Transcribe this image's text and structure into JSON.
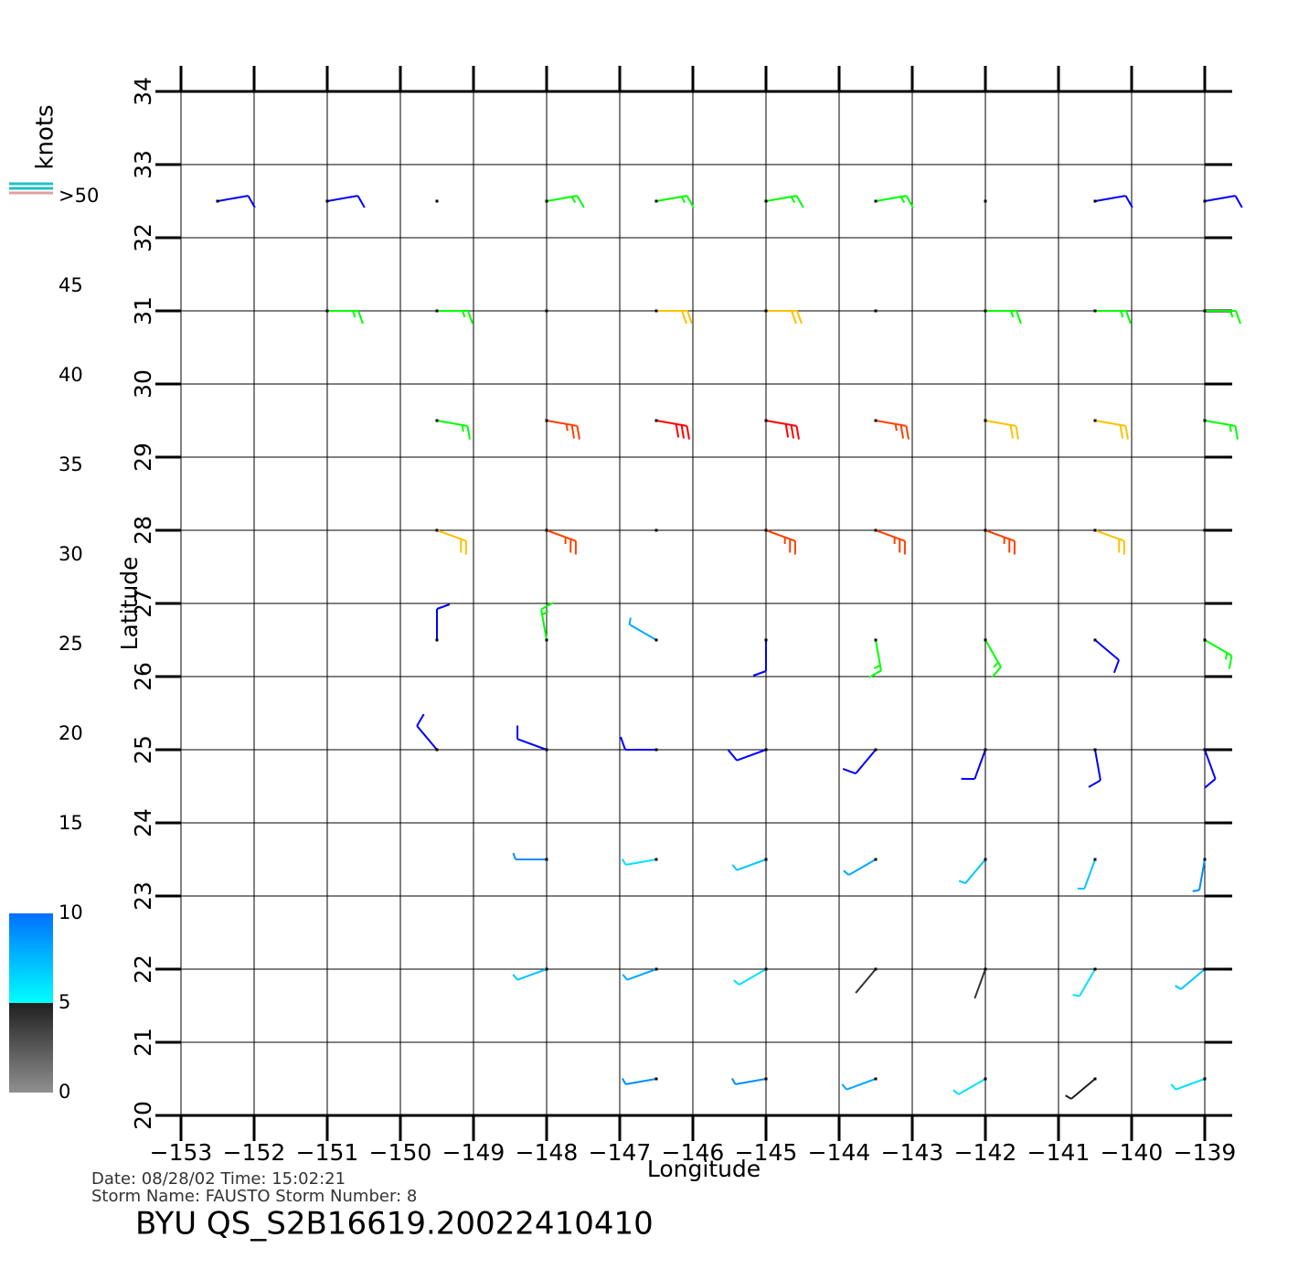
{
  "chart_data": {
    "type": "barb",
    "title": "BYU  QS_S2B16619.20022410410",
    "info_lines": [
      "Date: 08/28/02   Time: 15:02:21",
      "Storm Name: FAUSTO   Storm Number: 8"
    ],
    "xlabel": "Longitude",
    "ylabel": "Latitude",
    "xlim": [
      -153,
      -138.625
    ],
    "ylim": [
      20,
      34
    ],
    "xticks": [
      {
        "value": -153,
        "label": "−153"
      },
      {
        "value": -152,
        "label": "−152"
      },
      {
        "value": -151,
        "label": "−151"
      },
      {
        "value": -150,
        "label": "−150"
      },
      {
        "value": -149,
        "label": "−149"
      },
      {
        "value": -148,
        "label": "−148"
      },
      {
        "value": -147,
        "label": "−147"
      },
      {
        "value": -146,
        "label": "−146"
      },
      {
        "value": -145,
        "label": "−145"
      },
      {
        "value": -144,
        "label": "−144"
      },
      {
        "value": -143,
        "label": "−143"
      },
      {
        "value": -142,
        "label": "−142"
      },
      {
        "value": -141,
        "label": "−141"
      },
      {
        "value": -140,
        "label": "−140"
      },
      {
        "value": -139,
        "label": "−139"
      }
    ],
    "yticks": [
      20,
      21,
      22,
      23,
      24,
      25,
      26,
      27,
      28,
      29,
      30,
      31,
      32,
      33,
      34
    ],
    "grid": true,
    "colorbar": {
      "label": "knots",
      "lim": [
        0,
        50
      ],
      "ticks": [
        0,
        5,
        10,
        15,
        20,
        25,
        30,
        35,
        40,
        45,
        {
          "value": 50,
          "label": ">50"
        }
      ],
      "scale": [
        [
          0,
          "#909090"
        ],
        [
          5,
          "#202020"
        ],
        [
          5,
          "#00ffff"
        ],
        [
          10,
          "#0070ff"
        ],
        [
          15,
          "#0000ff"
        ],
        [
          15,
          "#006000"
        ],
        [
          20,
          "#00ff00"
        ],
        [
          20,
          "#ffff20"
        ],
        [
          25,
          "#ffc000"
        ],
        [
          25,
          "#ff9000"
        ],
        [
          30,
          "#ff4000"
        ],
        [
          30,
          "#ff2000"
        ],
        [
          35,
          "#ff0000"
        ],
        [
          35,
          "#c08050"
        ],
        [
          40,
          "#401010"
        ],
        [
          40,
          "#ff00ff"
        ],
        [
          50,
          "#6010c0"
        ]
      ]
    },
    "wind": {
      "rows": [
        {
          "lat": 32.5,
          "lon": [
            -152.5,
            -151,
            -149.5,
            -148,
            -146.5,
            -145,
            -143.5,
            -142,
            -140.5,
            -139
          ],
          "speed": [
            12,
            14,
            15,
            16,
            17,
            17,
            16,
            15,
            13,
            12
          ],
          "direction": [
            80,
            80,
            80,
            80,
            80,
            80,
            80,
            80,
            80,
            80
          ]
        },
        {
          "lat": 31,
          "lon": [
            -151,
            -149.5,
            -148,
            -146.5,
            -145,
            -143.5,
            -142,
            -140.5,
            -139
          ],
          "speed": [
            16,
            18,
            20,
            22,
            22,
            20,
            18,
            17,
            16
          ],
          "direction": [
            90,
            90,
            90,
            90,
            90,
            90,
            90,
            90,
            90
          ]
        },
        {
          "lat": 29.5,
          "lon": [
            -149.5,
            -148,
            -146.5,
            -145,
            -143.5,
            -142,
            -140.5,
            -139
          ],
          "speed": [
            18,
            27,
            33,
            32,
            27,
            24,
            22,
            18
          ],
          "direction": [
            100,
            100,
            100,
            100,
            100,
            100,
            100,
            100
          ]
        },
        {
          "lat": 28,
          "lon": [
            -149.5,
            -148,
            -146.5,
            -145,
            -143.5,
            -142,
            -140.5,
            -139
          ],
          "speed": [
            24,
            28,
            30,
            28,
            29,
            26,
            22,
            20
          ],
          "direction": [
            110,
            110,
            110,
            110,
            110,
            110,
            110,
            110
          ]
        },
        {
          "lat": 26.5,
          "lon": [
            -149.5,
            -148,
            -146.5,
            -145,
            -143.5,
            -142,
            -140.5,
            -139
          ],
          "speed": [
            14,
            18,
            8,
            14,
            18,
            16,
            14,
            17
          ],
          "direction": [
            360,
            350,
            300,
            180,
            170,
            150,
            130,
            120
          ]
        },
        {
          "lat": 25,
          "lon": [
            -149.5,
            -148,
            -146.5,
            -145,
            -143.5,
            -142,
            -140.5,
            -139
          ],
          "speed": [
            12,
            14,
            12,
            12,
            13,
            14,
            12,
            12
          ],
          "direction": [
            320,
            290,
            270,
            250,
            220,
            200,
            170,
            160
          ]
        },
        {
          "lat": 23.5,
          "lon": [
            -148,
            -146.5,
            -145,
            -143.5,
            -142,
            -140.5,
            -139
          ],
          "speed": [
            9,
            6,
            7,
            8,
            7,
            7,
            9
          ],
          "direction": [
            270,
            260,
            250,
            240,
            220,
            200,
            190
          ]
        },
        {
          "lat": 22,
          "lon": [
            -148,
            -146.5,
            -145,
            -143.5,
            -142,
            -140.5,
            -139
          ],
          "speed": [
            7,
            8,
            6,
            4,
            4,
            6,
            7
          ],
          "direction": [
            250,
            250,
            240,
            220,
            200,
            210,
            230
          ]
        },
        {
          "lat": 20.5,
          "lon": [
            -146.5,
            -145,
            -143.5,
            -142,
            -140.5,
            -139
          ],
          "speed": [
            9,
            9,
            8,
            6,
            5,
            6
          ],
          "direction": [
            260,
            260,
            250,
            240,
            230,
            250
          ]
        }
      ]
    }
  }
}
